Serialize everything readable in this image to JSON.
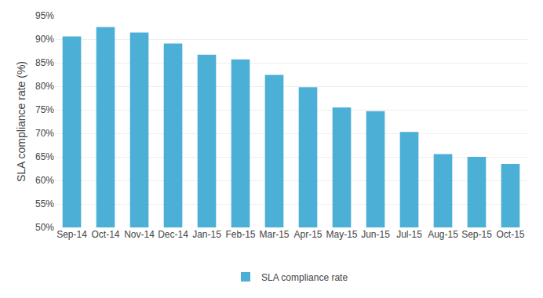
{
  "chart_data": {
    "type": "bar",
    "categories": [
      "Sep-14",
      "Oct-14",
      "Nov-14",
      "Dec-14",
      "Jan-15",
      "Feb-15",
      "Mar-15",
      "Apr-15",
      "May-15",
      "Jun-15",
      "Jul-15",
      "Aug-15",
      "Sep-15",
      "Oct-15"
    ],
    "series": [
      {
        "name": "SLA compliance rate",
        "color": "#4BAFD6",
        "values": [
          90.6,
          92.6,
          91.4,
          89.1,
          86.7,
          85.7,
          82.4,
          79.8,
          75.5,
          74.7,
          70.3,
          65.6,
          65.0,
          63.5
        ]
      }
    ],
    "ylabel": "SLA compliance rate (%)",
    "ylim": [
      50,
      95
    ],
    "yticks": [
      {
        "value": 50,
        "label": "50%"
      },
      {
        "value": 55,
        "label": "55%"
      },
      {
        "value": 60,
        "label": "60%"
      },
      {
        "value": 65,
        "label": "65%"
      },
      {
        "value": 70,
        "label": "70%"
      },
      {
        "value": 75,
        "label": "75%"
      },
      {
        "value": 80,
        "label": "80%"
      },
      {
        "value": 85,
        "label": "85%"
      },
      {
        "value": 90,
        "label": "90%"
      },
      {
        "value": 95,
        "label": "95%"
      }
    ],
    "grid": true,
    "legend": "bottom"
  }
}
